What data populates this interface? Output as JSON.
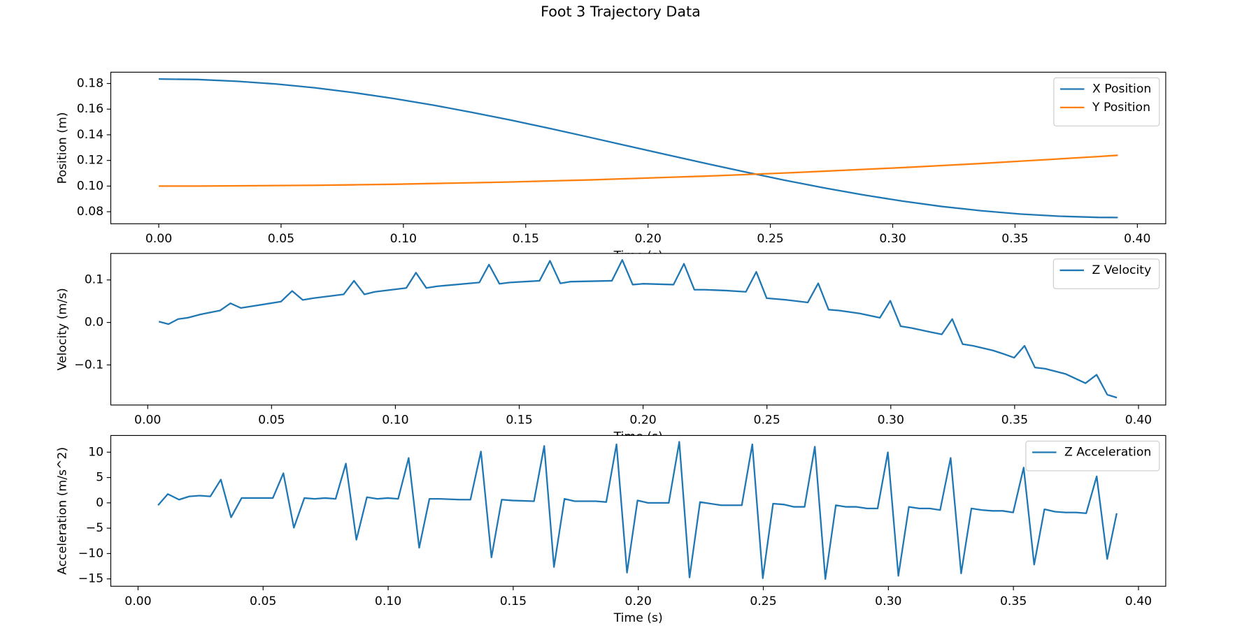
{
  "title": "Foot 3 Trajectory Data",
  "chart_data": [
    {
      "type": "line",
      "xlabel": "Time (s)",
      "ylabel": "Position (m)",
      "legend": "upper right",
      "xlim": [
        -0.0196,
        0.4116
      ],
      "ylim": [
        0.0706,
        0.1888
      ],
      "xticks": [
        {
          "value": 0,
          "label": "0.00"
        },
        0.05,
        {
          "value": 0.1,
          "label": "0.10"
        },
        0.15,
        {
          "value": 0.2,
          "label": "0.20"
        },
        0.25,
        {
          "value": 0.3,
          "label": "0.30"
        },
        0.35,
        {
          "value": 0.4,
          "label": "0.40"
        }
      ],
      "yticks": [
        0.08,
        {
          "value": 0.1,
          "label": "0.10"
        },
        0.12,
        0.14,
        0.16,
        0.18
      ],
      "x": [
        0,
        0.016,
        0.032,
        0.048,
        0.064,
        0.08,
        0.096,
        0.112,
        0.128,
        0.144,
        0.16,
        0.176,
        0.192,
        0.208,
        0.224,
        0.24,
        0.256,
        0.272,
        0.288,
        0.304,
        0.32,
        0.336,
        0.352,
        0.368,
        0.384,
        0.392
      ],
      "series": [
        {
          "name": "X Position",
          "color": "#1f77b4",
          "values": [
            0.1835,
            0.1831,
            0.1817,
            0.1796,
            0.1766,
            0.1728,
            0.1683,
            0.1632,
            0.1575,
            0.1514,
            0.1449,
            0.1381,
            0.1312,
            0.1243,
            0.1175,
            0.1109,
            0.1045,
            0.0986,
            0.0931,
            0.0883,
            0.0841,
            0.0808,
            0.0782,
            0.0765,
            0.0756,
            0.0755
          ]
        },
        {
          "name": "Y Position",
          "color": "#ff7f0e",
          "values": [
            0.1,
            0.1,
            0.1002,
            0.1004,
            0.1006,
            0.101,
            0.1014,
            0.102,
            0.1026,
            0.1032,
            0.104,
            0.1048,
            0.1058,
            0.1068,
            0.1078,
            0.109,
            0.1102,
            0.1116,
            0.113,
            0.1144,
            0.116,
            0.1176,
            0.1194,
            0.1212,
            0.123,
            0.124
          ]
        }
      ]
    },
    {
      "type": "line",
      "xlabel": "Time (s)",
      "ylabel": "Velocity (m/s)",
      "legend": "upper right",
      "xlim": [
        -0.0149,
        0.411
      ],
      "ylim": [
        -0.1943,
        0.1623
      ],
      "xticks": [
        {
          "value": 0,
          "label": "0.00"
        },
        0.05,
        {
          "value": 0.1,
          "label": "0.10"
        },
        0.15,
        {
          "value": 0.2,
          "label": "0.20"
        },
        0.25,
        {
          "value": 0.3,
          "label": "0.30"
        },
        0.35,
        {
          "value": 0.4,
          "label": "0.40"
        }
      ],
      "yticks": [
        {
          "value": -0.1,
          "label": "−0.1"
        },
        {
          "value": 0,
          "label": "0.0"
        },
        0.1
      ],
      "x": [
        0.0045,
        0.0084,
        0.0123,
        0.0162,
        0.0214,
        0.0292,
        0.0334,
        0.0376,
        0.0538,
        0.0583,
        0.0626,
        0.0668,
        0.0791,
        0.0833,
        0.0875,
        0.0917,
        0.1044,
        0.1083,
        0.1125,
        0.1167,
        0.1339,
        0.1378,
        0.142,
        0.1462,
        0.1582,
        0.1624,
        0.1666,
        0.1708,
        0.1874,
        0.1916,
        0.1958,
        0.2,
        0.2123,
        0.2165,
        0.2207,
        0.225,
        0.2334,
        0.2415,
        0.2457,
        0.2499,
        0.2541,
        0.258,
        0.2665,
        0.2707,
        0.2749,
        0.2791,
        0.2875,
        0.2956,
        0.2998,
        0.304,
        0.3083,
        0.3164,
        0.3206,
        0.3248,
        0.329,
        0.3332,
        0.3413,
        0.3455,
        0.3498,
        0.354,
        0.3582,
        0.3624,
        0.3705,
        0.3786,
        0.3831,
        0.3874,
        0.3913
      ],
      "series": [
        {
          "name": "Z Velocity",
          "color": "#1f77b4",
          "values": [
            0.002,
            -0.004,
            0.008,
            0.011,
            0.019,
            0.028,
            0.045,
            0.034,
            0.049,
            0.074,
            0.053,
            0.057,
            0.066,
            0.098,
            0.066,
            0.072,
            0.081,
            0.117,
            0.081,
            0.085,
            0.094,
            0.136,
            0.091,
            0.094,
            0.098,
            0.145,
            0.092,
            0.096,
            0.098,
            0.147,
            0.089,
            0.091,
            0.089,
            0.138,
            0.077,
            0.077,
            0.075,
            0.072,
            0.119,
            0.057,
            0.055,
            0.053,
            0.047,
            0.092,
            0.03,
            0.028,
            0.021,
            0.011,
            0.051,
            -0.009,
            -0.013,
            -0.023,
            -0.028,
            0.008,
            -0.051,
            -0.055,
            -0.066,
            -0.074,
            -0.083,
            -0.055,
            -0.106,
            -0.109,
            -0.121,
            -0.143,
            -0.123,
            -0.17,
            -0.177
          ]
        }
      ]
    },
    {
      "type": "line",
      "xlabel": "Time (s)",
      "ylabel": "Acceleration (m/s^2)",
      "legend": "upper right",
      "xlim": [
        -0.0109,
        0.4109
      ],
      "ylim": [
        -16.46,
        13.29
      ],
      "xticks": [
        {
          "value": 0,
          "label": "0.00"
        },
        0.05,
        {
          "value": 0.1,
          "label": "0.10"
        },
        0.15,
        {
          "value": 0.2,
          "label": "0.20"
        },
        0.25,
        {
          "value": 0.3,
          "label": "0.30"
        },
        0.35,
        {
          "value": 0.4,
          "label": "0.40"
        }
      ],
      "yticks": [
        {
          "value": -15,
          "label": "−15"
        },
        {
          "value": -10,
          "label": "−10"
        },
        {
          "value": -5,
          "label": "−5"
        },
        0,
        5,
        10
      ],
      "x": [
        0.008,
        0.0119,
        0.0164,
        0.0205,
        0.0247,
        0.0289,
        0.0331,
        0.0372,
        0.0414,
        0.0498,
        0.0539,
        0.0581,
        0.0623,
        0.0665,
        0.0706,
        0.0748,
        0.079,
        0.0831,
        0.0873,
        0.0915,
        0.0957,
        0.0998,
        0.104,
        0.1082,
        0.1124,
        0.1165,
        0.1207,
        0.1287,
        0.1329,
        0.1371,
        0.1413,
        0.1454,
        0.1496,
        0.1583,
        0.1624,
        0.1663,
        0.1705,
        0.1746,
        0.183,
        0.1872,
        0.1913,
        0.1955,
        0.1997,
        0.2039,
        0.208,
        0.2122,
        0.2164,
        0.2205,
        0.2247,
        0.2289,
        0.2331,
        0.2372,
        0.2414,
        0.2456,
        0.2498,
        0.2539,
        0.2581,
        0.2623,
        0.2665,
        0.2706,
        0.2748,
        0.279,
        0.2831,
        0.2873,
        0.2915,
        0.2957,
        0.2998,
        0.304,
        0.3082,
        0.3124,
        0.3165,
        0.3207,
        0.3249,
        0.3291,
        0.3332,
        0.3374,
        0.3416,
        0.3457,
        0.3499,
        0.3541,
        0.3583,
        0.3624,
        0.3666,
        0.3708,
        0.375,
        0.3791,
        0.3833,
        0.3875,
        0.3913
      ],
      "series": [
        {
          "name": "Z Acceleration",
          "color": "#1f77b4",
          "values": [
            -0.47,
            1.74,
            0.63,
            1.27,
            1.42,
            1.27,
            4.59,
            -2.85,
            0.95,
            0.95,
            0.95,
            5.85,
            -4.91,
            0.95,
            0.79,
            0.95,
            0.79,
            7.75,
            -7.28,
            1.11,
            0.79,
            0.95,
            0.79,
            8.86,
            -8.86,
            0.79,
            0.79,
            0.63,
            0.63,
            10.13,
            -10.76,
            0.63,
            0.47,
            0.32,
            11.23,
            -12.66,
            0.79,
            0.32,
            0.32,
            0.16,
            11.55,
            -13.77,
            0.47,
            0,
            0,
            0,
            12.03,
            -14.72,
            0.16,
            -0.16,
            -0.47,
            -0.47,
            -0.47,
            11.55,
            -14.87,
            -0.16,
            -0.32,
            -0.79,
            -0.79,
            11.08,
            -15.03,
            -0.47,
            -0.79,
            -0.79,
            -1.11,
            -1.11,
            9.97,
            -14.4,
            -0.79,
            -1.11,
            -1.11,
            -1.42,
            8.86,
            -13.92,
            -1.11,
            -1.42,
            -1.58,
            -1.58,
            -1.9,
            6.96,
            -12.18,
            -1.27,
            -1.74,
            -1.9,
            -1.9,
            -2.06,
            5.22,
            -11.08,
            -2.06
          ]
        }
      ]
    }
  ]
}
